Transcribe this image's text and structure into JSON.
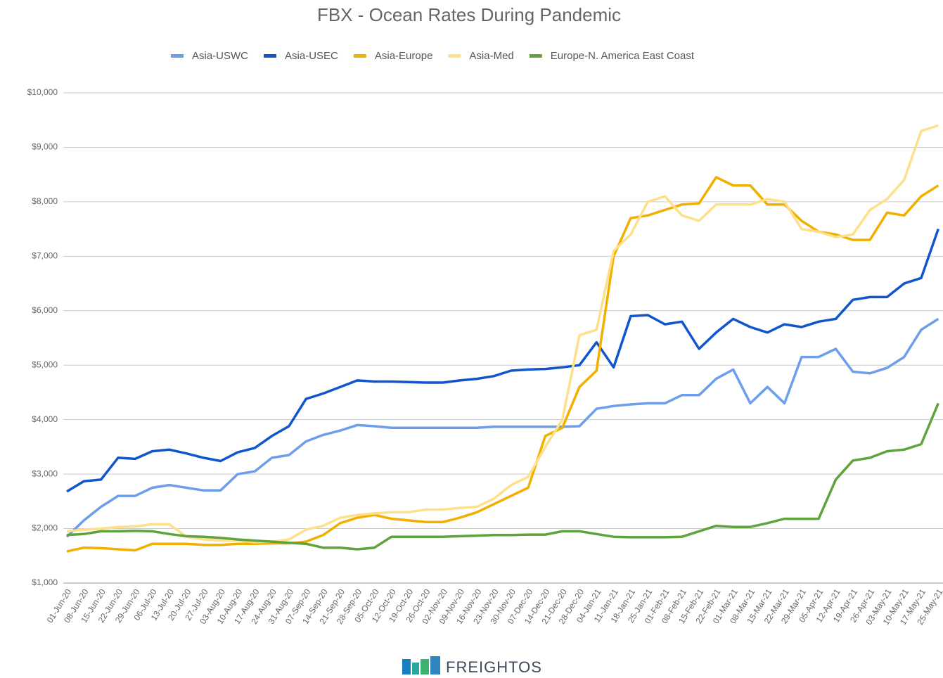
{
  "chart_data": {
    "type": "line",
    "title": "FBX - Ocean Rates During Pandemic",
    "footer": "FREIGHTOS",
    "categories": [
      "01-Jun-20",
      "08-Jun-20",
      "15-Jun-20",
      "22-Jun-20",
      "29-Jun-20",
      "06-Jul-20",
      "13-Jul-20",
      "20-Jul-20",
      "27-Jul-20",
      "03-Aug-20",
      "10-Aug-20",
      "17-Aug-20",
      "24-Aug-20",
      "31-Aug-20",
      "07-Sep-20",
      "14-Sep-20",
      "21-Sep-20",
      "28-Sep-20",
      "05-Oct-20",
      "12-Oct-20",
      "19-Oct-20",
      "26-Oct-20",
      "02-Nov-20",
      "09-Nov-20",
      "16-Nov-20",
      "23-Nov-20",
      "30-Nov-20",
      "07-Dec-20",
      "14-Dec-20",
      "21-Dec-20",
      "28-Dec-20",
      "04-Jan-21",
      "11-Jan-21",
      "18-Jan-21",
      "25-Jan-21",
      "01-Feb-21",
      "08-Feb-21",
      "15-Feb-21",
      "22-Feb-21",
      "01-Mar-21",
      "08-Mar-21",
      "15-Mar-21",
      "22-Mar-21",
      "29-Mar-21",
      "05-Apr-21",
      "12-Apr-21",
      "19-Apr-21",
      "26-Apr-21",
      "03-May-21",
      "10-May-21",
      "17-May-21",
      "25-May-21"
    ],
    "series": [
      {
        "name": "Asia-USWC",
        "color": "#6d9eeb",
        "values": [
          1850,
          2150,
          2400,
          2600,
          2600,
          2750,
          2800,
          2750,
          2700,
          2700,
          3000,
          3050,
          3300,
          3350,
          3600,
          3720,
          3800,
          3900,
          3880,
          3850,
          3850,
          3850,
          3850,
          3850,
          3850,
          3870,
          3870,
          3870,
          3870,
          3870,
          3880,
          4200,
          4250,
          4280,
          4300,
          4300,
          4450,
          4450,
          4750,
          4920,
          4300,
          4600,
          4300,
          5150,
          5150,
          5300,
          4880,
          4850,
          4950,
          5150,
          5650,
          5850
        ]
      },
      {
        "name": "Asia-USEC",
        "color": "#1155cc",
        "values": [
          2680,
          2870,
          2900,
          3300,
          3280,
          3420,
          3450,
          3380,
          3300,
          3240,
          3400,
          3480,
          3700,
          3880,
          4380,
          4480,
          4600,
          4720,
          4700,
          4700,
          4690,
          4680,
          4680,
          4720,
          4750,
          4800,
          4900,
          4920,
          4930,
          4960,
          5000,
          5420,
          4960,
          5900,
          5920,
          5750,
          5800,
          5300,
          5600,
          5850,
          5700,
          5600,
          5750,
          5700,
          5800,
          5850,
          6200,
          6250,
          6250,
          6500,
          6600,
          7500
        ]
      },
      {
        "name": "Asia-Europe",
        "color": "#f1b000",
        "values": [
          1580,
          1650,
          1640,
          1620,
          1600,
          1720,
          1720,
          1720,
          1700,
          1700,
          1720,
          1720,
          1730,
          1730,
          1760,
          1880,
          2100,
          2200,
          2250,
          2180,
          2150,
          2120,
          2120,
          2200,
          2300,
          2450,
          2600,
          2750,
          3700,
          3850,
          4600,
          4900,
          7000,
          7700,
          7750,
          7850,
          7950,
          7970,
          8450,
          8300,
          8300,
          7950,
          7950,
          7650,
          7450,
          7400,
          7300,
          7300,
          7800,
          7750,
          8100,
          8300
        ]
      },
      {
        "name": "Asia-Med",
        "color": "#ffe08a",
        "values": [
          1950,
          1980,
          2000,
          2030,
          2040,
          2080,
          2080,
          1850,
          1800,
          1780,
          1780,
          1750,
          1760,
          1800,
          1980,
          2050,
          2200,
          2250,
          2280,
          2300,
          2300,
          2350,
          2350,
          2380,
          2400,
          2550,
          2800,
          2950,
          3500,
          4000,
          5550,
          5650,
          7100,
          7400,
          8000,
          8100,
          7750,
          7650,
          7950,
          7950,
          7950,
          8050,
          8000,
          7500,
          7450,
          7350,
          7400,
          7850,
          8050,
          8400,
          9300,
          9400
        ]
      },
      {
        "name": "Europe-N. America East Coast",
        "color": "#5fa33d",
        "values": [
          1880,
          1900,
          1950,
          1950,
          1960,
          1950,
          1900,
          1860,
          1850,
          1830,
          1800,
          1780,
          1760,
          1740,
          1720,
          1650,
          1650,
          1620,
          1650,
          1850,
          1850,
          1850,
          1850,
          1860,
          1870,
          1880,
          1880,
          1890,
          1890,
          1950,
          1950,
          1900,
          1850,
          1840,
          1840,
          1840,
          1850,
          1950,
          2050,
          2030,
          2030,
          2100,
          2180,
          2180,
          2180,
          2900,
          3250,
          3300,
          3420,
          3450,
          3550,
          4300
        ]
      }
    ],
    "ylim": [
      1000,
      10000
    ],
    "yticks": [
      {
        "value": 1000,
        "label": "$1,000"
      },
      {
        "value": 2000,
        "label": "$2,000"
      },
      {
        "value": 3000,
        "label": "$3,000"
      },
      {
        "value": 4000,
        "label": "$4,000"
      },
      {
        "value": 5000,
        "label": "$5,000"
      },
      {
        "value": 6000,
        "label": "$6,000"
      },
      {
        "value": 7000,
        "label": "$7,000"
      },
      {
        "value": 8000,
        "label": "$8,000"
      },
      {
        "value": 9000,
        "label": "$9,000"
      },
      {
        "value": 10000,
        "label": "$10,000"
      }
    ],
    "grid": true
  }
}
